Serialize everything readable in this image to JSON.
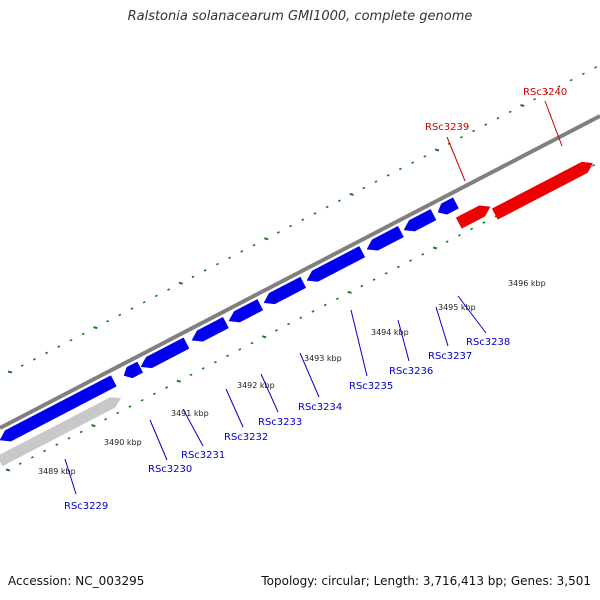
{
  "header": {
    "title": "Ralstonia solanacearum GMI1000, complete genome"
  },
  "footer": {
    "accession": "Accession: NC_003295",
    "stats": "Topology: circular; Length: 3,716,413 bp; Genes: 3,501"
  },
  "colors": {
    "backbone": "#808080",
    "forward_gene": "#ee0000",
    "reverse_gene": "#0000ee",
    "other_gene": "#c8c8c8",
    "tick_marks": "#1a7a1a",
    "forward_label": "#cc0000",
    "reverse_label": "#0000cc"
  },
  "ticks": [
    {
      "label": "3489 kbp"
    },
    {
      "label": "3490 kbp"
    },
    {
      "label": "3491 kbp"
    },
    {
      "label": "3492 kbp"
    },
    {
      "label": "3493 kbp"
    },
    {
      "label": "3494 kbp"
    },
    {
      "label": "3495 kbp"
    },
    {
      "label": "3496 kbp"
    }
  ],
  "genes": [
    {
      "name": "RSc3229",
      "strand": "reverse"
    },
    {
      "name": "RSc3230",
      "strand": "reverse"
    },
    {
      "name": "RSc3231",
      "strand": "reverse"
    },
    {
      "name": "RSc3232",
      "strand": "reverse"
    },
    {
      "name": "RSc3233",
      "strand": "reverse"
    },
    {
      "name": "RSc3234",
      "strand": "reverse"
    },
    {
      "name": "RSc3235",
      "strand": "reverse"
    },
    {
      "name": "RSc3236",
      "strand": "reverse"
    },
    {
      "name": "RSc3237",
      "strand": "reverse"
    },
    {
      "name": "RSc3238",
      "strand": "reverse"
    },
    {
      "name": "RSc3239",
      "strand": "forward"
    },
    {
      "name": "RSc3240",
      "strand": "forward"
    }
  ]
}
